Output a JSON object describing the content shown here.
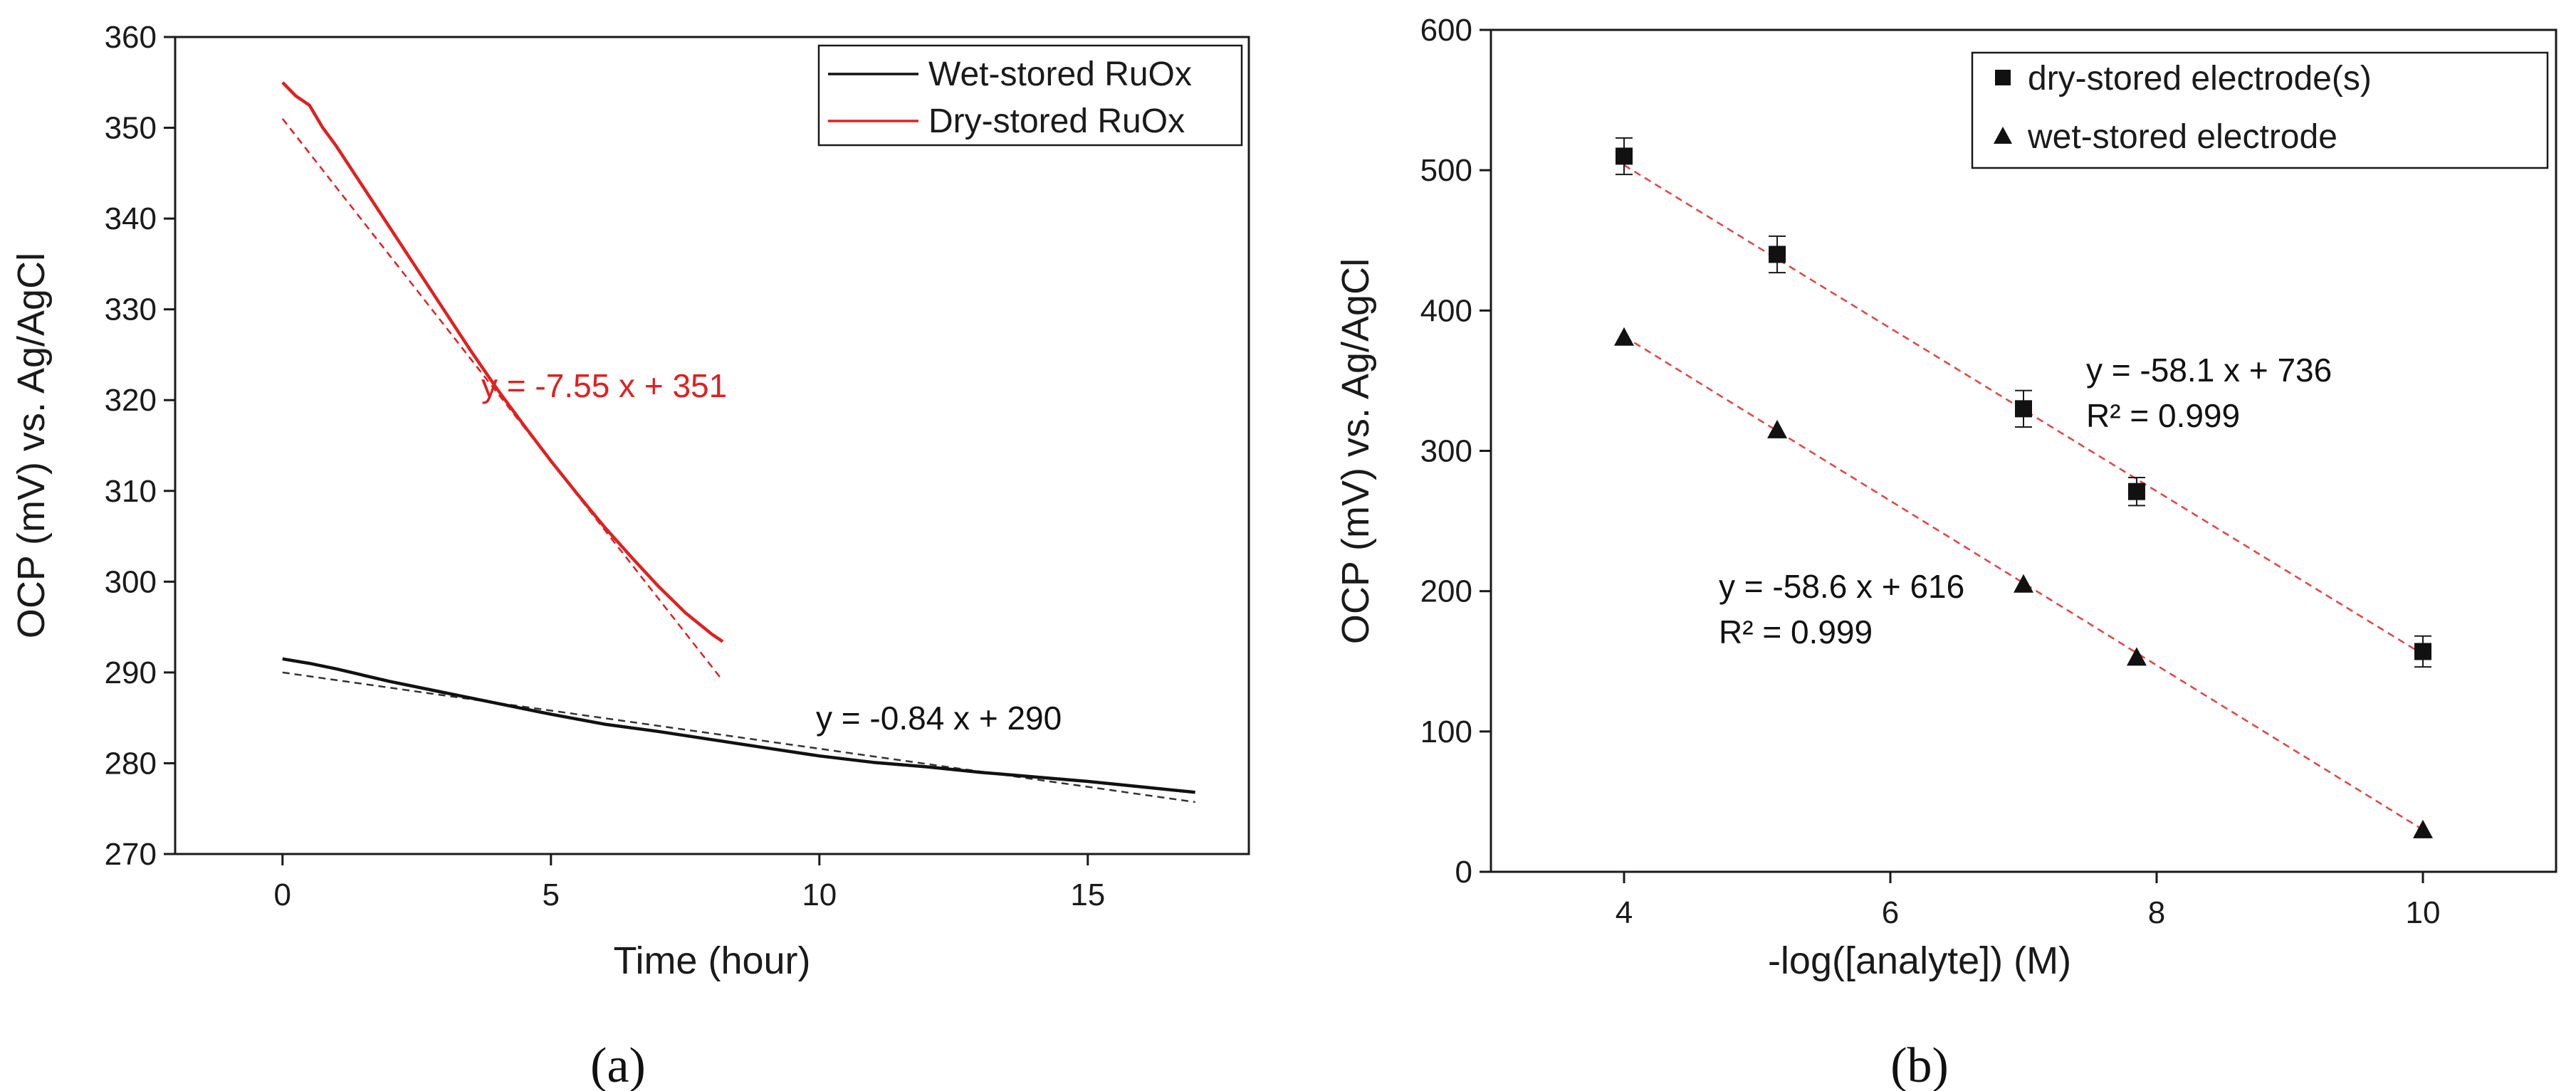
{
  "chart_data": [
    {
      "type": "line",
      "panel_label": "(a)",
      "title": "",
      "xlabel": "Time (hour)",
      "ylabel": "OCP (mV) vs. Ag/AgCl",
      "xlim": [
        -2,
        18
      ],
      "ylim": [
        270,
        360
      ],
      "xticks": [
        0,
        5,
        10,
        15
      ],
      "yticks": [
        270,
        280,
        290,
        300,
        310,
        320,
        330,
        340,
        350,
        360
      ],
      "grid": false,
      "legend_position": "top-right",
      "series": [
        {
          "name": "Wet-stored RuOx",
          "color": "#111111",
          "x": [
            0,
            0.5,
            1,
            2,
            3,
            4,
            5,
            6,
            7,
            8,
            9,
            10,
            11,
            12,
            13,
            14,
            15,
            16,
            17
          ],
          "y": [
            291.5,
            291.0,
            290.4,
            289.0,
            287.8,
            286.6,
            285.4,
            284.3,
            283.5,
            282.6,
            281.7,
            280.8,
            280.1,
            279.6,
            279.0,
            278.5,
            278.0,
            277.4,
            276.8
          ]
        },
        {
          "name": "Dry-stored RuOx",
          "color": "#e02020",
          "x": [
            0,
            0.25,
            0.5,
            0.75,
            1,
            1.5,
            2,
            2.5,
            3,
            3.5,
            4,
            4.5,
            5,
            5.5,
            6,
            6.5,
            7,
            7.5,
            8,
            8.2
          ],
          "y": [
            355,
            353.5,
            352.5,
            350,
            348,
            343.5,
            339,
            334.5,
            330,
            325.5,
            321.2,
            317.2,
            313.3,
            309.6,
            306,
            302.7,
            299.5,
            296.6,
            294.2,
            293.4
          ]
        }
      ],
      "fits": [
        {
          "series": "Wet-stored RuOx",
          "equation": "y = -0.84 x + 290",
          "slope": -0.84,
          "intercept": 290,
          "x_range": [
            0,
            17
          ],
          "color": "#333333"
        },
        {
          "series": "Dry-stored RuOx",
          "equation": "y = -7.55 x + 351",
          "slope": -7.55,
          "intercept": 351,
          "x_range": [
            0,
            8.2
          ],
          "color": "#e02020"
        }
      ]
    },
    {
      "type": "scatter",
      "panel_label": "(b)",
      "title": "",
      "xlabel": "-log([analyte]) (M)",
      "ylabel": "OCP (mV) vs. Ag/AgCl",
      "xlim": [
        3,
        11
      ],
      "ylim": [
        0,
        600
      ],
      "xticks": [
        4,
        6,
        8,
        10
      ],
      "yticks": [
        0,
        100,
        200,
        300,
        400,
        500,
        600
      ],
      "grid": false,
      "legend_position": "top-right",
      "series": [
        {
          "name": "dry-stored electrode(s)",
          "marker": "square",
          "x": [
            4,
            5.15,
            7,
            7.85,
            10
          ],
          "y": [
            510,
            440,
            330,
            271,
            157
          ],
          "error": [
            13,
            13,
            13,
            10,
            11
          ]
        },
        {
          "name": "wet-stored electrode",
          "marker": "triangle",
          "x": [
            4,
            5.15,
            7,
            7.85,
            10
          ],
          "y": [
            381,
            315,
            205,
            153,
            30
          ],
          "error": [
            0,
            0,
            0,
            0,
            0
          ]
        }
      ],
      "fits": [
        {
          "series": "dry-stored electrode(s)",
          "equation": "y = -58.1 x + 736",
          "r2": "R² = 0.999",
          "slope": -58.1,
          "intercept": 736,
          "x_range": [
            4,
            10
          ],
          "color": "#e84040"
        },
        {
          "series": "wet-stored electrode",
          "equation": "y = -58.6 x + 616",
          "r2": "R² = 0.999",
          "slope": -58.6,
          "intercept": 616,
          "x_range": [
            4,
            10
          ],
          "color": "#e84040"
        }
      ]
    }
  ]
}
